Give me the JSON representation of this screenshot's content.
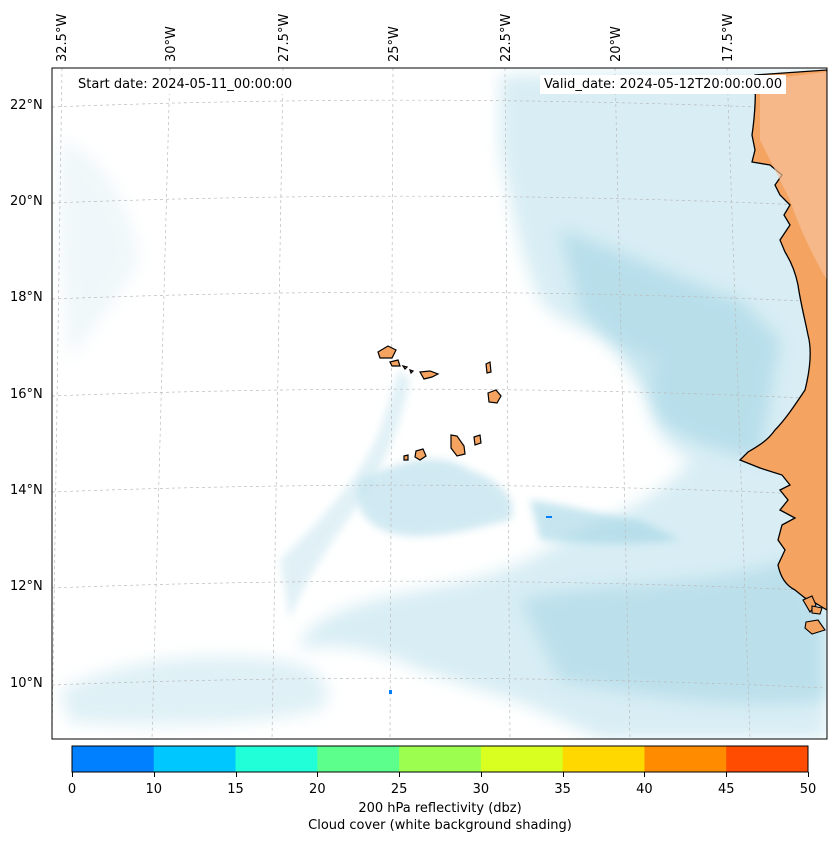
{
  "map": {
    "start_date": "Start date: 2024-05-11_00:00:00",
    "valid_date": "Valid_date: 2024-05-12T20:00:00.00",
    "lon_labels": [
      "32.5°W",
      "30°W",
      "27.5°W",
      "25°W",
      "22.5°W",
      "20°W",
      "17.5°W"
    ],
    "lat_labels": [
      "22°N",
      "20°N",
      "18°N",
      "16°N",
      "14°N",
      "12°N",
      "10°N"
    ]
  },
  "colorbar": {
    "ticks": [
      "0",
      "10",
      "15",
      "20",
      "25",
      "30",
      "35",
      "40",
      "45",
      "50"
    ],
    "colors": [
      "#0080ff",
      "#00c8ff",
      "#20ffd8",
      "#5cff8c",
      "#9cff50",
      "#d8ff20",
      "#ffd800",
      "#ff8c00",
      "#ff4c00"
    ],
    "label_line1": "200 hPa reflectivity (dbz)",
    "label_line2": "Cloud cover (white background shading)"
  },
  "colors": {
    "land": "#f4a460",
    "cloud": "#a8d8e6",
    "coastline": "#000000"
  }
}
